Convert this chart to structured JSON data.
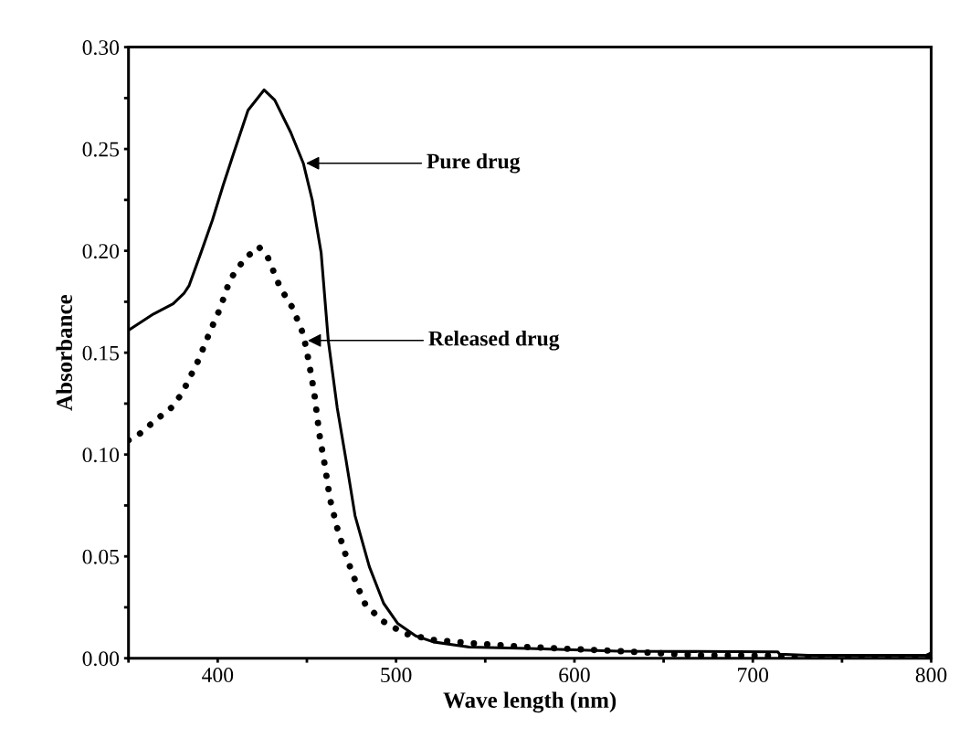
{
  "chart_data": {
    "type": "line",
    "xlabel": "Wave length (nm)",
    "ylabel": "Absorbance",
    "xlim": [
      350,
      800
    ],
    "ylim": [
      0,
      0.3
    ],
    "xticks": [
      {
        "value": 350,
        "label": null
      },
      400,
      {
        "value": 450,
        "label": null
      },
      500,
      {
        "value": 550,
        "label": null
      },
      600,
      {
        "value": 650,
        "label": null
      },
      700,
      {
        "value": 750,
        "label": null
      },
      800
    ],
    "yticks": [
      {
        "value": 0,
        "label": "0.00"
      },
      {
        "value": 0.025,
        "label": null
      },
      {
        "value": 0.05,
        "label": "0.05"
      },
      {
        "value": 0.075,
        "label": null
      },
      {
        "value": 0.1,
        "label": "0.10"
      },
      {
        "value": 0.125,
        "label": null
      },
      {
        "value": 0.15,
        "label": "0.15"
      },
      {
        "value": 0.175,
        "label": null
      },
      {
        "value": 0.2,
        "label": "0.20"
      },
      {
        "value": 0.225,
        "label": null
      },
      {
        "value": 0.25,
        "label": "0.25"
      },
      {
        "value": 0.275,
        "label": null
      },
      {
        "value": 0.3,
        "label": "0.30"
      }
    ],
    "grid": false,
    "legend": false,
    "marker": "none",
    "series": [
      {
        "color": "#000000",
        "line_style": "solid",
        "x": [
          350,
          364,
          375,
          381,
          384,
          391,
          397,
          403,
          409,
          417,
          426,
          432,
          441,
          448,
          453,
          458,
          462,
          467,
          472,
          477,
          485,
          493,
          501,
          511,
          521,
          541,
          574,
          625,
          714,
          715,
          731,
          797,
          800
        ],
        "values": [
          0.161,
          0.169,
          0.174,
          0.179,
          0.183,
          0.2,
          0.215,
          0.232,
          0.248,
          0.269,
          0.279,
          0.274,
          0.258,
          0.243,
          0.225,
          0.199,
          0.156,
          0.123,
          0.097,
          0.07,
          0.045,
          0.027,
          0.017,
          0.011,
          0.008,
          0.0055,
          0.0048,
          0.0035,
          0.0031,
          0.002,
          0.0014,
          0.0014,
          0.0026
        ]
      },
      {
        "color": "#000000",
        "line_style": "dotted",
        "x": [
          350,
          356,
          364,
          374,
          380,
          389,
          396,
          401,
          407,
          415,
          423,
          428,
          435,
          442,
          448,
          451,
          454,
          457,
          460,
          463,
          467,
          472,
          478,
          483,
          493,
          505,
          521,
          543,
          574,
          625,
          672,
          711,
          727,
          800
        ],
        "values": [
          0.107,
          0.11,
          0.116,
          0.123,
          0.13,
          0.146,
          0.161,
          0.171,
          0.186,
          0.196,
          0.202,
          0.197,
          0.182,
          0.172,
          0.159,
          0.146,
          0.131,
          0.11,
          0.095,
          0.078,
          0.064,
          0.05,
          0.036,
          0.026,
          0.018,
          0.012,
          0.009,
          0.0073,
          0.0055,
          0.0035,
          0.0014,
          0.0012,
          0.0003,
          0.0003
        ]
      }
    ],
    "annotations": [
      {
        "text": "Pure drug",
        "x": 449.5,
        "y": 0.243
      },
      {
        "text": "Released drug",
        "x": 450.5,
        "y": 0.156
      }
    ]
  }
}
